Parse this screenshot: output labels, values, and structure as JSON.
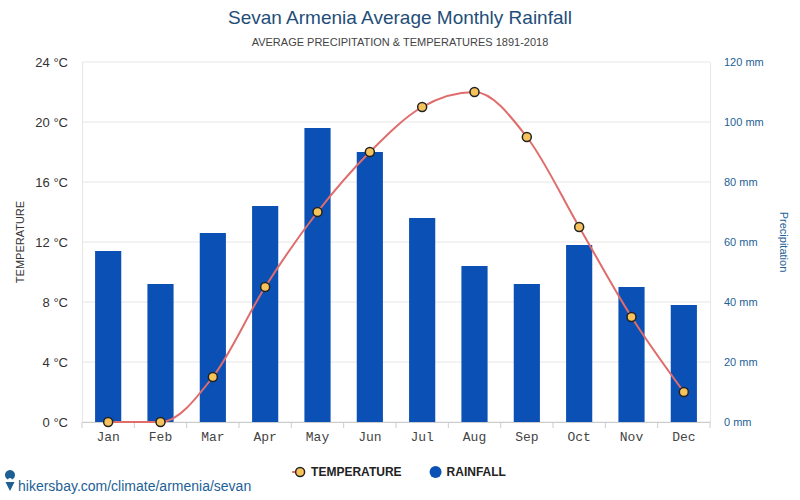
{
  "chart_data": {
    "type": "bar",
    "title": "Sevan Armenia Average Monthly Rainfall",
    "subtitle": "AVERAGE PRECIPITATION & TEMPERATURES 1891-2018",
    "ylabel": "TEMPERATURE",
    "y2label": "Precipitation",
    "source": "hikersbay.com/climate/armenia/sevan",
    "categories": [
      "Jan",
      "Feb",
      "Mar",
      "Apr",
      "May",
      "Jun",
      "Jul",
      "Aug",
      "Sep",
      "Oct",
      "Nov",
      "Dec"
    ],
    "series": [
      {
        "name": "TEMPERATURE",
        "type": "line",
        "color": "#e06c6c",
        "marker": "circle",
        "line_style": "solid",
        "values": [
          0,
          0,
          3,
          9,
          14,
          18,
          21,
          22,
          19,
          13,
          7,
          2
        ]
      },
      {
        "name": "RAINFALL",
        "type": "bar",
        "color": "#0b50b4",
        "axis": "y2",
        "values": [
          57,
          46,
          63,
          72,
          98,
          90,
          68,
          52,
          46,
          59,
          45,
          39
        ]
      }
    ],
    "ylim": [
      0,
      24
    ],
    "yticks": [
      {
        "value": 0,
        "label": "0 °C"
      },
      {
        "value": 4,
        "label": "4 °C"
      },
      {
        "value": 8,
        "label": "8 °C"
      },
      {
        "value": 12,
        "label": "12 °C"
      },
      {
        "value": 16,
        "label": "16 °C"
      },
      {
        "value": 20,
        "label": "20 °C"
      },
      {
        "value": 24,
        "label": "24 °C"
      }
    ],
    "y2lim": [
      0,
      120
    ],
    "y2ticks": [
      {
        "value": 0,
        "label": "0 mm"
      },
      {
        "value": 20,
        "label": "20 mm"
      },
      {
        "value": 40,
        "label": "40 mm"
      },
      {
        "value": 60,
        "label": "60 mm"
      },
      {
        "value": 80,
        "label": "80 mm"
      },
      {
        "value": 100,
        "label": "100 mm"
      },
      {
        "value": 120,
        "label": "120 mm"
      }
    ],
    "grid": true,
    "legend": "bottom"
  }
}
